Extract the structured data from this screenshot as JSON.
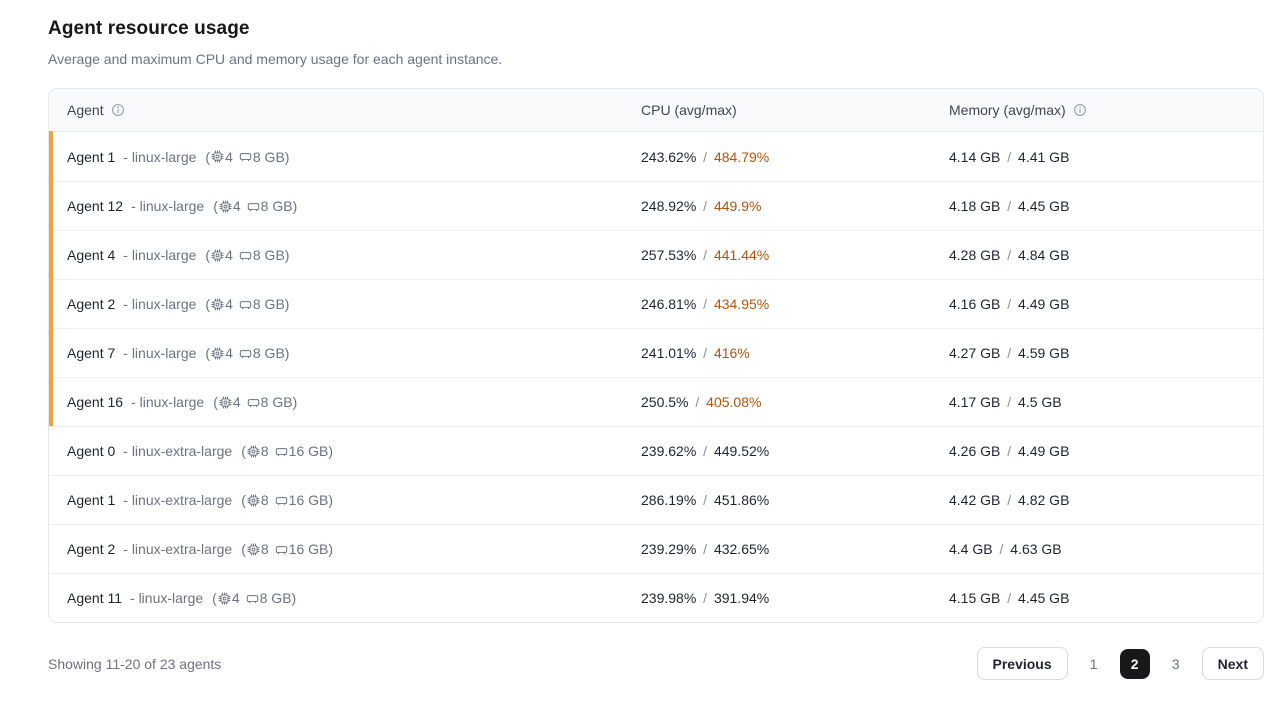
{
  "page": {
    "title": "Agent resource usage",
    "subtitle": "Average and maximum CPU and memory usage for each agent instance."
  },
  "colors": {
    "accent_bar": "#E9A63B",
    "cpu_max_warning": "#B45309",
    "active_page_bg": "#18181B"
  },
  "table": {
    "columns": {
      "agent": "Agent",
      "cpu": "CPU (avg/max)",
      "memory": "Memory (avg/max)"
    },
    "separator": "/",
    "rows": [
      {
        "name": "Agent 1",
        "instance": "- linux-large",
        "cpus": "4",
        "mem": "8 GB",
        "cpu_avg": "243.62%",
        "cpu_max": "484.79%",
        "mem_avg": "4.14 GB",
        "mem_max": "4.41 GB",
        "flagged": true
      },
      {
        "name": "Agent 12",
        "instance": "- linux-large",
        "cpus": "4",
        "mem": "8 GB",
        "cpu_avg": "248.92%",
        "cpu_max": "449.9%",
        "mem_avg": "4.18 GB",
        "mem_max": "4.45 GB",
        "flagged": true
      },
      {
        "name": "Agent 4",
        "instance": "- linux-large",
        "cpus": "4",
        "mem": "8 GB",
        "cpu_avg": "257.53%",
        "cpu_max": "441.44%",
        "mem_avg": "4.28 GB",
        "mem_max": "4.84 GB",
        "flagged": true
      },
      {
        "name": "Agent 2",
        "instance": "- linux-large",
        "cpus": "4",
        "mem": "8 GB",
        "cpu_avg": "246.81%",
        "cpu_max": "434.95%",
        "mem_avg": "4.16 GB",
        "mem_max": "4.49 GB",
        "flagged": true
      },
      {
        "name": "Agent 7",
        "instance": "- linux-large",
        "cpus": "4",
        "mem": "8 GB",
        "cpu_avg": "241.01%",
        "cpu_max": "416%",
        "mem_avg": "4.27 GB",
        "mem_max": "4.59 GB",
        "flagged": true
      },
      {
        "name": "Agent 16",
        "instance": "- linux-large",
        "cpus": "4",
        "mem": "8 GB",
        "cpu_avg": "250.5%",
        "cpu_max": "405.08%",
        "mem_avg": "4.17 GB",
        "mem_max": "4.5 GB",
        "flagged": true
      },
      {
        "name": "Agent 0",
        "instance": "- linux-extra-large",
        "cpus": "8",
        "mem": "16 GB",
        "cpu_avg": "239.62%",
        "cpu_max": "449.52%",
        "mem_avg": "4.26 GB",
        "mem_max": "4.49 GB",
        "flagged": false
      },
      {
        "name": "Agent 1",
        "instance": "- linux-extra-large",
        "cpus": "8",
        "mem": "16 GB",
        "cpu_avg": "286.19%",
        "cpu_max": "451.86%",
        "mem_avg": "4.42 GB",
        "mem_max": "4.82 GB",
        "flagged": false
      },
      {
        "name": "Agent 2",
        "instance": "- linux-extra-large",
        "cpus": "8",
        "mem": "16 GB",
        "cpu_avg": "239.29%",
        "cpu_max": "432.65%",
        "mem_avg": "4.4 GB",
        "mem_max": "4.63 GB",
        "flagged": false
      },
      {
        "name": "Agent 11",
        "instance": "- linux-large",
        "cpus": "4",
        "mem": "8 GB",
        "cpu_avg": "239.98%",
        "cpu_max": "391.94%",
        "mem_avg": "4.15 GB",
        "mem_max": "4.45 GB",
        "flagged": false
      }
    ]
  },
  "footer": {
    "showing": "Showing 11-20 of 23 agents",
    "previous_label": "Previous",
    "pages": [
      "1",
      "2",
      "3"
    ],
    "active_page": "2",
    "next_label": "Next"
  }
}
